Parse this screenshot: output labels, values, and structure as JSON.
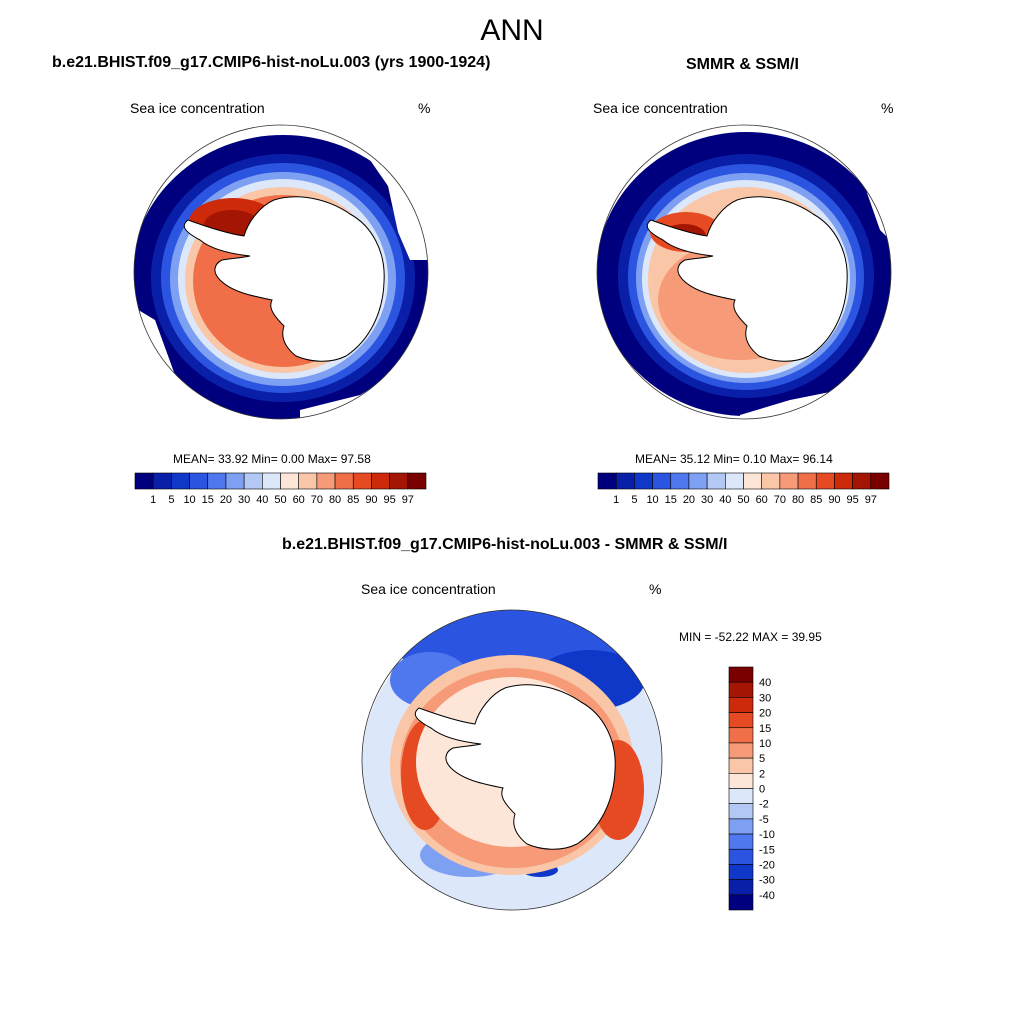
{
  "header": {
    "title": "ANN"
  },
  "panels": {
    "model": {
      "title": "b.e21.BHIST.f09_g17.CMIP6-hist-noLu.003 (yrs 1900-1924)",
      "left_label": "Sea ice concentration",
      "right_label": "%",
      "stats": "MEAN=  33.92  Min=   0.00  Max=  97.58"
    },
    "obs": {
      "title": "SMMR & SSM/I",
      "left_label": "Sea ice concentration",
      "right_label": "%",
      "stats": "MEAN=  35.12  Min=   0.10  Max=  96.14"
    },
    "diff": {
      "title": "b.e21.BHIST.f09_g17.CMIP6-hist-noLu.003 - SMMR & SSM/I",
      "left_label": "Sea ice concentration",
      "right_label": "%",
      "minmax": "MIN = -52.22 MAX =  39.95"
    }
  },
  "colorbar_abs": {
    "labels": [
      "1",
      "5",
      "10",
      "15",
      "20",
      "30",
      "40",
      "50",
      "60",
      "70",
      "80",
      "85",
      "90",
      "95",
      "97"
    ],
    "colors": [
      "#00007f",
      "#0a1fa8",
      "#1038c8",
      "#2b55e0",
      "#4f78ee",
      "#7ea0f2",
      "#b3c8f5",
      "#dce8fa",
      "#fde6d8",
      "#f9c6a8",
      "#f69a78",
      "#f06f48",
      "#e54a22",
      "#cc2a0a",
      "#a51503",
      "#7a0000"
    ]
  },
  "colorbar_diff": {
    "labels": [
      "40",
      "30",
      "20",
      "15",
      "10",
      "5",
      "2",
      "0",
      "-2",
      "-5",
      "-10",
      "-15",
      "-20",
      "-30",
      "-40"
    ],
    "colors": [
      "#7a0000",
      "#a51503",
      "#cc2a0a",
      "#e54a22",
      "#f06f48",
      "#f69a78",
      "#f9c6a8",
      "#fde6d8",
      "#dce8fa",
      "#b3c8f5",
      "#7ea0f2",
      "#4f78ee",
      "#2b55e0",
      "#1038c8",
      "#0a1fa8",
      "#00007f"
    ]
  }
}
